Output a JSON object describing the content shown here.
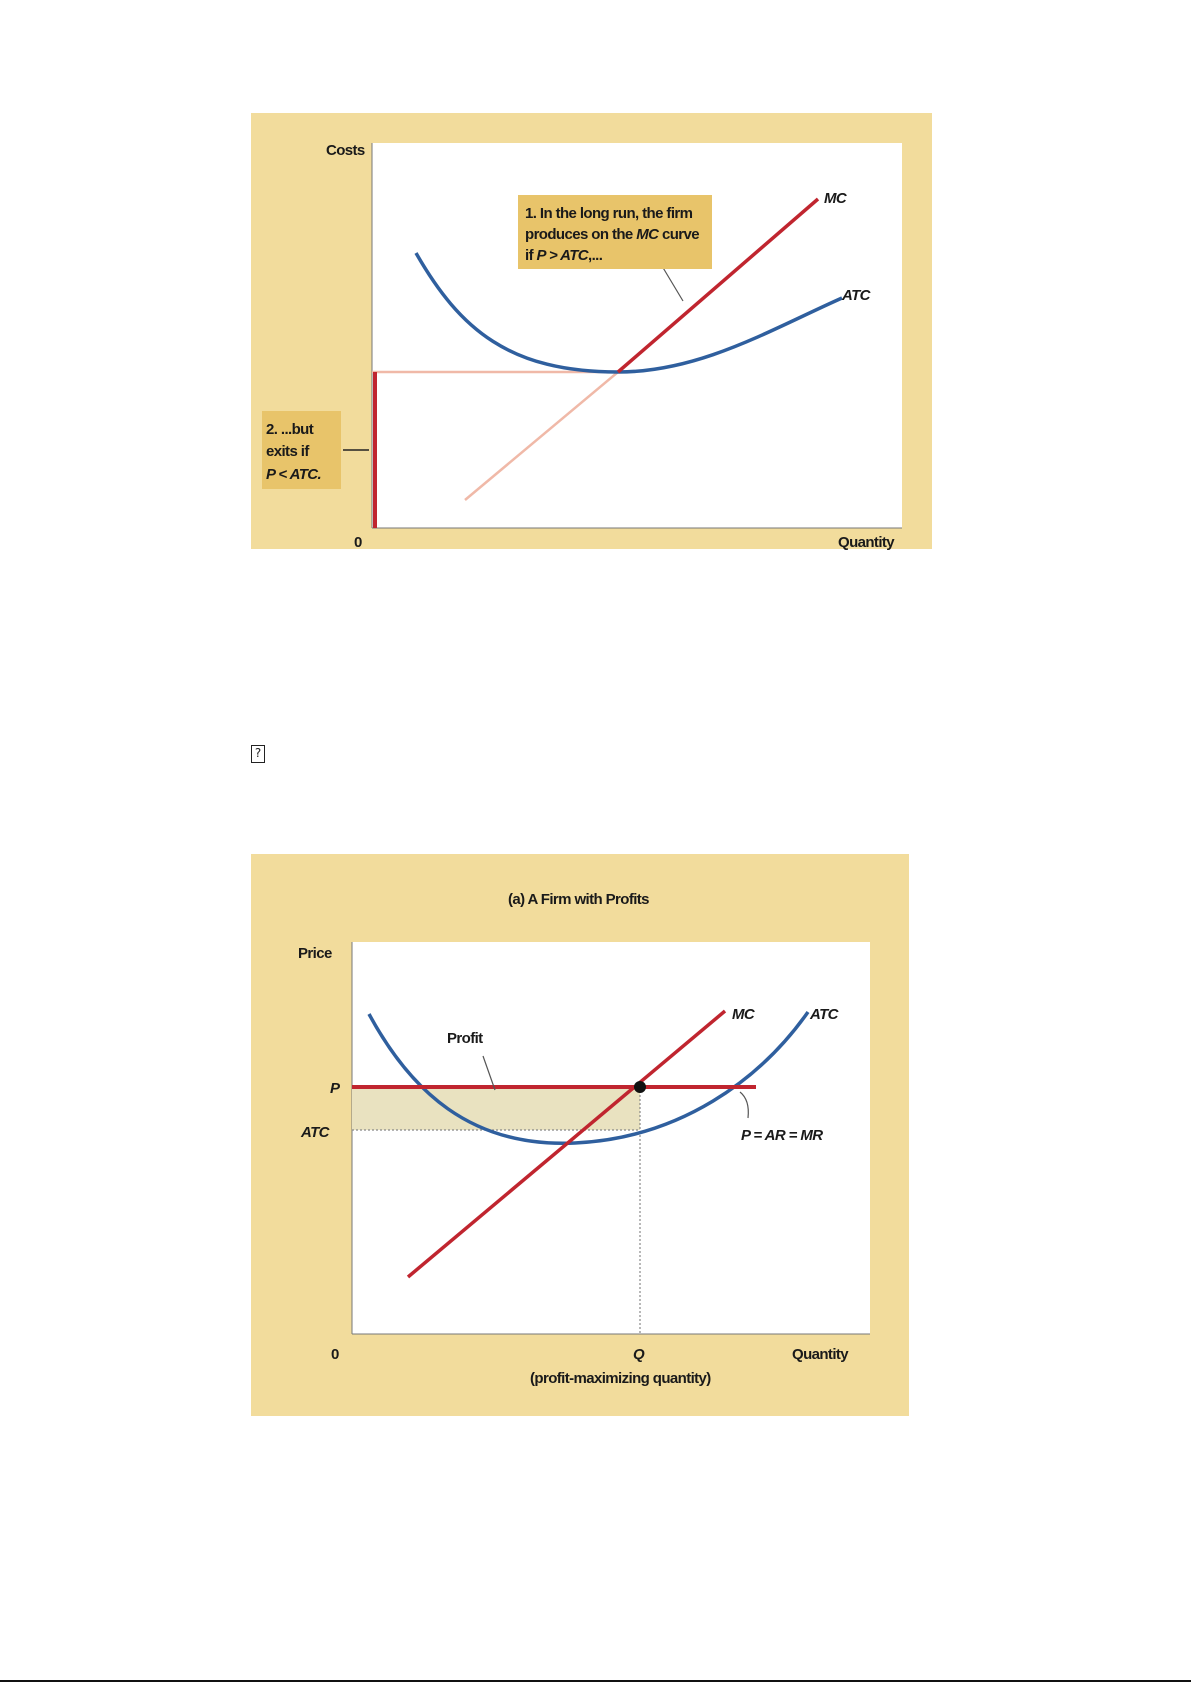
{
  "figure1": {
    "y_axis_label": "Costs",
    "x_axis_label": "Quantity",
    "origin_label": "0",
    "curve_mc_label": "MC",
    "curve_atc_label": "ATC",
    "callout1": {
      "line1": "1. In the long run, the firm",
      "line2_a": "produces on the ",
      "line2_b": "MC",
      "line2_c": " curve",
      "line3_a": "if ",
      "line3_b": "P > ATC",
      "line3_c": ",..."
    },
    "callout2": {
      "line1": "2. ...but",
      "line2": "exits if",
      "line3": "P < ATC."
    },
    "colors": {
      "background": "#f2dc9c",
      "plot": "#ffffff",
      "mc": "#c0252f",
      "atc": "#2f5f9e",
      "callout": "#e8c46a",
      "pale_line": "#f0b9a8"
    }
  },
  "missing_glyph": "?",
  "figure2": {
    "title": "(a) A Firm with Profits",
    "y_axis_label": "Price",
    "x_axis_label": "Quantity",
    "origin_label": "0",
    "p_label": "P",
    "atc_tick_label": "ATC",
    "q_label": "Q",
    "q_caption": "(profit-maximizing quantity)",
    "curve_mc_label": "MC",
    "curve_atc_label": "ATC",
    "price_line_label": "P = AR = MR",
    "profit_label": "Profit",
    "colors": {
      "background": "#f2dc9c",
      "plot": "#ffffff",
      "mc": "#c0252f",
      "atc": "#2f5f9e",
      "profit_fill": "#e9e2c0"
    }
  }
}
